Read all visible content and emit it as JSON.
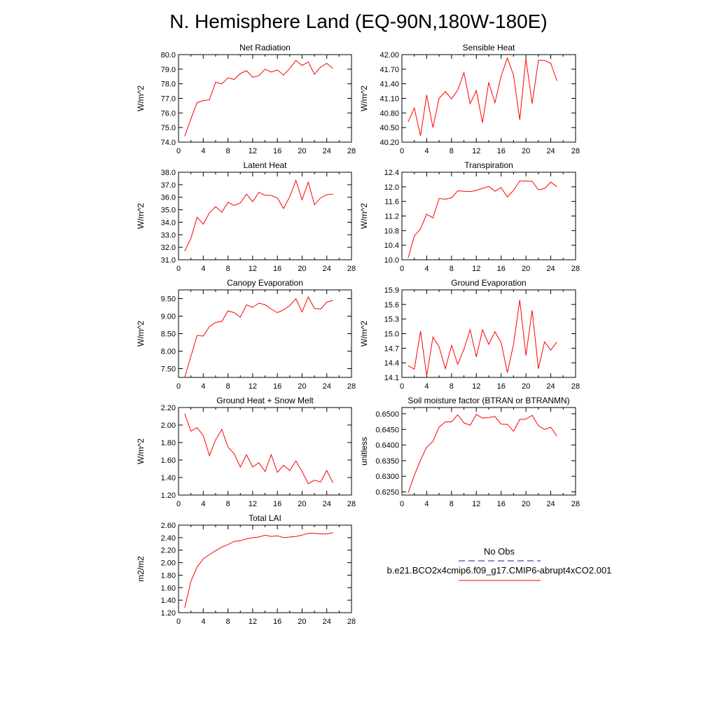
{
  "figure": {
    "title": "N. Hemisphere Land (EQ-90N,180W-180E)"
  },
  "legend": {
    "obs_label": "No Obs",
    "obs_color": "#1a1a8c",
    "run_label": "b.e21.BCO2x4cmip6.f09_g17.CMIP6-abrupt4xCO2.001",
    "run_color": "#ff0000"
  },
  "chart_data": [
    {
      "type": "line",
      "title": "Net Radiation",
      "ylabel": "W/m^2",
      "xlim": [
        0,
        28
      ],
      "xticks": [
        "0",
        "4",
        "8",
        "12",
        "16",
        "20",
        "24",
        "28"
      ],
      "ylim": [
        74.0,
        80.0
      ],
      "yticks": [
        "74.0",
        "75.0",
        "76.0",
        "77.0",
        "78.0",
        "79.0",
        "80.0"
      ],
      "x": [
        1,
        2,
        3,
        4,
        5,
        6,
        7,
        8,
        9,
        10,
        11,
        12,
        13,
        14,
        15,
        16,
        17,
        18,
        19,
        20,
        21,
        22,
        23,
        24,
        25
      ],
      "series": [
        {
          "values": [
            74.4,
            75.6,
            76.7,
            76.85,
            76.9,
            78.1,
            78.0,
            78.4,
            78.3,
            78.7,
            78.9,
            78.45,
            78.55,
            79.0,
            78.8,
            78.95,
            78.6,
            79.05,
            79.6,
            79.25,
            79.5,
            78.65,
            79.15,
            79.4,
            79.05
          ]
        }
      ]
    },
    {
      "type": "line",
      "title": "Sensible Heat",
      "ylabel": "W/m^2",
      "xlim": [
        0,
        28
      ],
      "xticks": [
        "0",
        "4",
        "8",
        "12",
        "16",
        "20",
        "24",
        "28"
      ],
      "ylim": [
        40.2,
        42.0
      ],
      "yticks": [
        "40.20",
        "40.50",
        "40.80",
        "41.10",
        "41.40",
        "41.70",
        "42.00"
      ],
      "x": [
        1,
        2,
        3,
        4,
        5,
        6,
        7,
        8,
        9,
        10,
        11,
        12,
        13,
        14,
        15,
        16,
        17,
        18,
        19,
        20,
        21,
        22,
        23,
        24,
        25
      ],
      "series": [
        {
          "values": [
            40.62,
            40.9,
            40.33,
            41.17,
            40.5,
            41.1,
            41.24,
            41.09,
            41.27,
            41.63,
            40.99,
            41.26,
            40.6,
            41.43,
            41.01,
            41.56,
            41.93,
            41.58,
            40.66,
            41.92,
            40.99,
            41.88,
            41.88,
            41.82,
            41.46
          ]
        }
      ]
    },
    {
      "type": "line",
      "title": "Latent Heat",
      "ylabel": "W/m^2",
      "xlim": [
        0,
        28
      ],
      "xticks": [
        "0",
        "4",
        "8",
        "12",
        "16",
        "20",
        "24",
        "28"
      ],
      "ylim": [
        31.0,
        38.0
      ],
      "yticks": [
        "31.0",
        "32.0",
        "33.0",
        "34.0",
        "35.0",
        "36.0",
        "37.0",
        "38.0"
      ],
      "x": [
        1,
        2,
        3,
        4,
        5,
        6,
        7,
        8,
        9,
        10,
        11,
        12,
        13,
        14,
        15,
        16,
        17,
        18,
        19,
        20,
        21,
        22,
        23,
        24,
        25
      ],
      "series": [
        {
          "values": [
            31.7,
            32.7,
            34.4,
            33.85,
            34.75,
            35.25,
            34.8,
            35.6,
            35.35,
            35.55,
            36.25,
            35.65,
            36.4,
            36.15,
            36.15,
            35.95,
            35.1,
            36.05,
            37.35,
            35.8,
            37.2,
            35.4,
            35.95,
            36.2,
            36.25
          ]
        }
      ]
    },
    {
      "type": "line",
      "title": "Transpiration",
      "ylabel": "W/m^2",
      "xlim": [
        0,
        28
      ],
      "xticks": [
        "0",
        "4",
        "8",
        "12",
        "16",
        "20",
        "24",
        "28"
      ],
      "ylim": [
        10.0,
        12.4
      ],
      "yticks": [
        "10.0",
        "10.4",
        "10.8",
        "11.2",
        "11.6",
        "12.0",
        "12.4"
      ],
      "x": [
        1,
        2,
        3,
        4,
        5,
        6,
        7,
        8,
        9,
        10,
        11,
        12,
        13,
        14,
        15,
        16,
        17,
        18,
        19,
        20,
        21,
        22,
        23,
        24,
        25
      ],
      "series": [
        {
          "values": [
            10.05,
            10.65,
            10.85,
            11.25,
            11.15,
            11.68,
            11.66,
            11.7,
            11.89,
            11.88,
            11.87,
            11.9,
            11.96,
            12.01,
            11.88,
            11.98,
            11.72,
            11.9,
            12.16,
            12.16,
            12.15,
            11.92,
            11.95,
            12.13,
            12.0
          ]
        }
      ]
    },
    {
      "type": "line",
      "title": "Canopy Evaporation",
      "ylabel": "W/m^2",
      "xlim": [
        0,
        28
      ],
      "xticks": [
        "0",
        "4",
        "8",
        "12",
        "16",
        "20",
        "24",
        "28"
      ],
      "ylim": [
        7.25,
        9.75
      ],
      "yticks": [
        "7.50",
        "8.00",
        "8.50",
        "9.00",
        "9.50"
      ],
      "x": [
        1,
        2,
        3,
        4,
        5,
        6,
        7,
        8,
        9,
        10,
        11,
        12,
        13,
        14,
        15,
        16,
        17,
        18,
        19,
        20,
        21,
        22,
        23,
        24,
        25
      ],
      "series": [
        {
          "values": [
            7.25,
            7.85,
            8.45,
            8.43,
            8.7,
            8.82,
            8.85,
            9.15,
            9.1,
            8.97,
            9.32,
            9.25,
            9.37,
            9.33,
            9.2,
            9.1,
            9.18,
            9.3,
            9.5,
            9.12,
            9.55,
            9.22,
            9.2,
            9.4,
            9.45
          ]
        }
      ]
    },
    {
      "type": "line",
      "title": "Ground Evaporation",
      "ylabel": "W/m^2",
      "xlim": [
        0,
        28
      ],
      "xticks": [
        "0",
        "4",
        "8",
        "12",
        "16",
        "20",
        "24",
        "28"
      ],
      "ylim": [
        14.1,
        15.9
      ],
      "yticks": [
        "14.1",
        "14.4",
        "14.7",
        "15.0",
        "15.3",
        "15.6",
        "15.9"
      ],
      "x": [
        1,
        2,
        3,
        4,
        5,
        6,
        7,
        8,
        9,
        10,
        11,
        12,
        13,
        14,
        15,
        16,
        17,
        18,
        19,
        20,
        21,
        22,
        23,
        24,
        25
      ],
      "series": [
        {
          "values": [
            14.34,
            14.27,
            15.05,
            14.13,
            14.93,
            14.73,
            14.28,
            14.76,
            14.37,
            14.68,
            15.08,
            14.52,
            15.08,
            14.78,
            15.04,
            14.82,
            14.2,
            14.78,
            15.69,
            14.55,
            15.48,
            14.28,
            14.83,
            14.66,
            14.83
          ]
        }
      ]
    },
    {
      "type": "line",
      "title": "Ground Heat + Snow Melt",
      "ylabel": "W/m^2",
      "xlim": [
        0,
        28
      ],
      "xticks": [
        "0",
        "4",
        "8",
        "12",
        "16",
        "20",
        "24",
        "28"
      ],
      "ylim": [
        1.2,
        2.2
      ],
      "yticks": [
        "1.20",
        "1.40",
        "1.60",
        "1.80",
        "2.00",
        "2.20"
      ],
      "x": [
        1,
        2,
        3,
        4,
        5,
        6,
        7,
        8,
        9,
        10,
        11,
        12,
        13,
        14,
        15,
        16,
        17,
        18,
        19,
        20,
        21,
        22,
        23,
        24,
        25
      ],
      "series": [
        {
          "values": [
            2.13,
            1.93,
            1.97,
            1.88,
            1.65,
            1.83,
            1.95,
            1.75,
            1.67,
            1.52,
            1.66,
            1.52,
            1.57,
            1.47,
            1.66,
            1.46,
            1.54,
            1.48,
            1.59,
            1.47,
            1.33,
            1.37,
            1.35,
            1.48,
            1.34
          ]
        }
      ]
    },
    {
      "type": "line",
      "title": "Soil moisture factor (BTRAN or BTRANMN)",
      "ylabel": "unitless",
      "xlim": [
        0,
        28
      ],
      "xticks": [
        "0",
        "4",
        "8",
        "12",
        "16",
        "20",
        "24",
        "28"
      ],
      "ylim": [
        0.624,
        0.652
      ],
      "yticks": [
        "0.6250",
        "0.6300",
        "0.6350",
        "0.6400",
        "0.6450",
        "0.6500"
      ],
      "x": [
        1,
        2,
        3,
        4,
        5,
        6,
        7,
        8,
        9,
        10,
        11,
        12,
        13,
        14,
        15,
        16,
        17,
        18,
        19,
        20,
        21,
        22,
        23,
        24,
        25
      ],
      "series": [
        {
          "values": [
            0.6247,
            0.6303,
            0.6352,
            0.6393,
            0.6412,
            0.6457,
            0.6474,
            0.6474,
            0.6497,
            0.6471,
            0.6463,
            0.6498,
            0.6486,
            0.6488,
            0.6491,
            0.6467,
            0.6466,
            0.6444,
            0.6482,
            0.6483,
            0.6495,
            0.6462,
            0.645,
            0.6457,
            0.6428
          ]
        }
      ]
    },
    {
      "type": "line",
      "title": "Total LAI",
      "ylabel": "m2/m2",
      "xlim": [
        0,
        28
      ],
      "xticks": [
        "0",
        "4",
        "8",
        "12",
        "16",
        "20",
        "24",
        "28"
      ],
      "ylim": [
        1.2,
        2.6
      ],
      "yticks": [
        "1.20",
        "1.40",
        "1.60",
        "1.80",
        "2.00",
        "2.20",
        "2.40",
        "2.60"
      ],
      "x": [
        1,
        2,
        3,
        4,
        5,
        6,
        7,
        8,
        9,
        10,
        11,
        12,
        13,
        14,
        15,
        16,
        17,
        18,
        19,
        20,
        21,
        22,
        23,
        24,
        25
      ],
      "series": [
        {
          "values": [
            1.28,
            1.7,
            1.93,
            2.06,
            2.13,
            2.19,
            2.25,
            2.29,
            2.34,
            2.35,
            2.38,
            2.4,
            2.41,
            2.44,
            2.42,
            2.43,
            2.4,
            2.41,
            2.42,
            2.44,
            2.47,
            2.47,
            2.46,
            2.46,
            2.48
          ]
        }
      ]
    }
  ]
}
